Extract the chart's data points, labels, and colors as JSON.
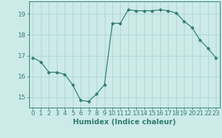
{
  "x": [
    0,
    1,
    2,
    3,
    4,
    5,
    6,
    7,
    8,
    9,
    10,
    11,
    12,
    13,
    14,
    15,
    16,
    17,
    18,
    19,
    20,
    21,
    22,
    23
  ],
  "y": [
    16.9,
    16.7,
    16.2,
    16.2,
    16.1,
    15.6,
    14.85,
    14.8,
    15.15,
    15.6,
    18.55,
    18.55,
    19.2,
    19.15,
    19.15,
    19.15,
    19.2,
    19.15,
    19.05,
    18.65,
    18.35,
    17.75,
    17.35,
    16.9
  ],
  "line_color": "#2e7d6e",
  "marker": "D",
  "marker_size": 2.5,
  "bg_color": "#cceae8",
  "grid_color": "#aad4d2",
  "axis_color": "#2e7d6e",
  "xlabel": "Humidex (Indice chaleur)",
  "ylim": [
    14.5,
    19.6
  ],
  "yticks": [
    15,
    16,
    17,
    18,
    19
  ],
  "xticks": [
    0,
    1,
    2,
    3,
    4,
    5,
    6,
    7,
    8,
    9,
    10,
    11,
    12,
    13,
    14,
    15,
    16,
    17,
    18,
    19,
    20,
    21,
    22,
    23
  ],
  "tick_fontsize": 6.5,
  "label_fontsize": 7.5
}
